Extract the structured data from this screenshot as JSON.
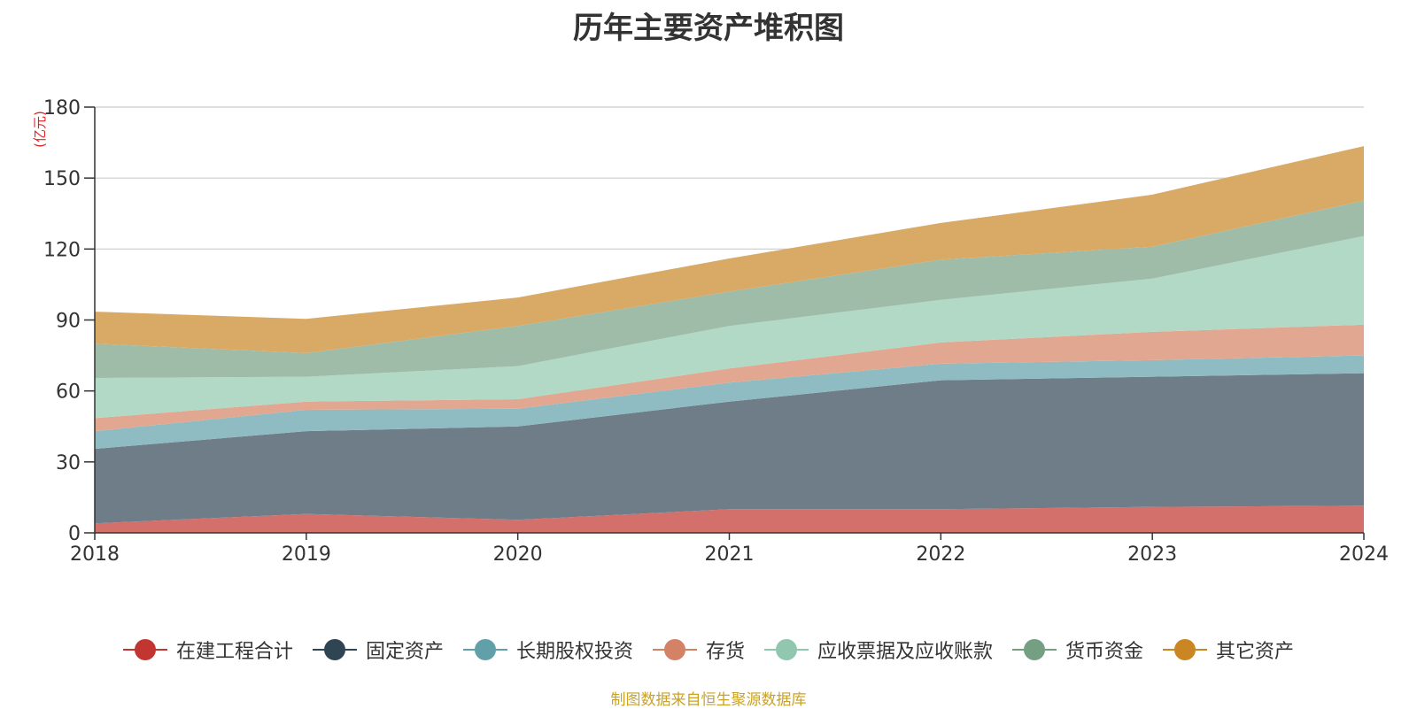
{
  "colors": {
    "title": "#333333",
    "axis": "#333333",
    "grid": "#cccccc",
    "unit": "#e02020",
    "source": "#c9a227"
  },
  "source_note": "制图数据来自恒生聚源数据库",
  "chart_data": {
    "type": "area",
    "stacked": true,
    "title": "历年主要资产堆积图",
    "ylabel": "(亿元)",
    "xlabel": "",
    "x": [
      "2018",
      "2019",
      "2020",
      "2021",
      "2022",
      "2023",
      "2024"
    ],
    "ylim": [
      0,
      180
    ],
    "yticks": [
      0,
      30,
      60,
      90,
      120,
      150,
      180
    ],
    "grid": true,
    "legend_position": "bottom",
    "series": [
      {
        "name": "在建工程合计",
        "color": "#c23531",
        "fill": "#d4706b",
        "values": [
          4,
          8,
          5.5,
          10,
          10,
          11,
          11.5
        ]
      },
      {
        "name": "固定资产",
        "color": "#2f4554",
        "fill": "#6f7d88",
        "values": [
          31.5,
          35,
          39.5,
          45.5,
          54.5,
          55,
          56
        ]
      },
      {
        "name": "长期股权投资",
        "color": "#61a0a8",
        "fill": "#8fbcc2",
        "values": [
          7.5,
          9,
          7.5,
          8,
          7,
          7,
          7.5
        ]
      },
      {
        "name": "存货",
        "color": "#d48265",
        "fill": "#e2a791",
        "values": [
          5.5,
          3.5,
          4,
          6,
          9,
          12,
          13
        ]
      },
      {
        "name": "应收票据及应收账款",
        "color": "#91c7ae",
        "fill": "#b1d9c6",
        "values": [
          17,
          10.5,
          14,
          18,
          18,
          22.5,
          37.5
        ]
      },
      {
        "name": "货币资金",
        "color": "#749f83",
        "fill": "#9ebca8",
        "values": [
          14.5,
          10,
          17,
          14.5,
          17,
          13.5,
          15
        ]
      },
      {
        "name": "其它资产",
        "color": "#ca8622",
        "fill": "#d9a966",
        "values": [
          13.5,
          14.5,
          12,
          14,
          15.5,
          22,
          23
        ]
      }
    ]
  }
}
